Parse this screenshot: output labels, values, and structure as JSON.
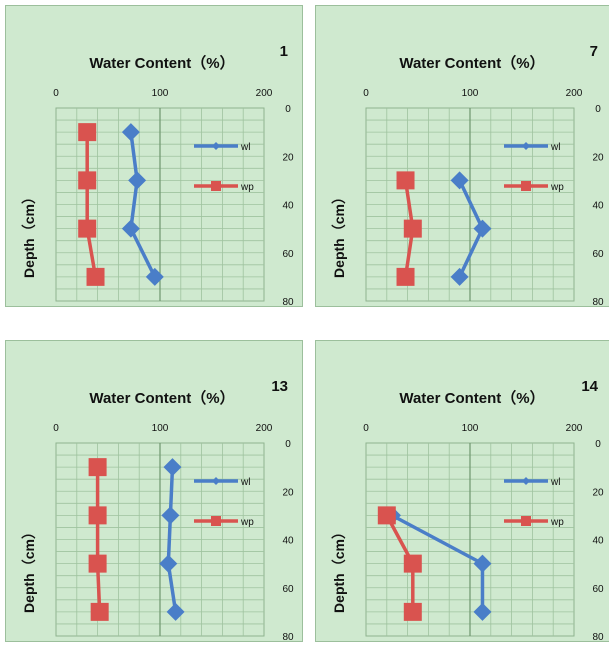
{
  "chart_data": [
    {
      "type": "line",
      "title": "Water Content（%）",
      "panel_label": "1",
      "xlabel": "Water Content（%）",
      "ylabel": "Depth（cm）",
      "xlim": [
        0,
        200
      ],
      "ylim": [
        0,
        80
      ],
      "x_ticks": [
        "0",
        "100",
        "200"
      ],
      "y_ticks": [
        "0",
        "20",
        "40",
        "60",
        "80"
      ],
      "y_inverted": true,
      "grid": true,
      "legend_position": "top-right",
      "series": [
        {
          "name": "wl",
          "color": "#4a7ec8",
          "marker": "diamond",
          "points": [
            {
              "x": 72,
              "y": 10
            },
            {
              "x": 78,
              "y": 30
            },
            {
              "x": 72,
              "y": 50
            },
            {
              "x": 95,
              "y": 70
            }
          ]
        },
        {
          "name": "wp",
          "color": "#d9534f",
          "marker": "square",
          "points": [
            {
              "x": 30,
              "y": 10
            },
            {
              "x": 30,
              "y": 30
            },
            {
              "x": 30,
              "y": 50
            },
            {
              "x": 38,
              "y": 70
            }
          ]
        }
      ]
    },
    {
      "type": "line",
      "title": "Water Content（%）",
      "panel_label": "7",
      "xlabel": "Water Content（%）",
      "ylabel": "Depth（cm）",
      "xlim": [
        0,
        200
      ],
      "ylim": [
        0,
        80
      ],
      "x_ticks": [
        "0",
        "100",
        "200"
      ],
      "y_ticks": [
        "0",
        "20",
        "40",
        "60",
        "80"
      ],
      "y_inverted": true,
      "grid": true,
      "legend_position": "top-right",
      "series": [
        {
          "name": "wl",
          "color": "#4a7ec8",
          "marker": "diamond",
          "points": [
            {
              "x": 90,
              "y": 30
            },
            {
              "x": 112,
              "y": 50
            },
            {
              "x": 90,
              "y": 70
            }
          ]
        },
        {
          "name": "wp",
          "color": "#d9534f",
          "marker": "square",
          "points": [
            {
              "x": 38,
              "y": 30
            },
            {
              "x": 45,
              "y": 50
            },
            {
              "x": 38,
              "y": 70
            }
          ]
        }
      ]
    },
    {
      "type": "line",
      "title": "Water Content（%）",
      "panel_label": "13",
      "xlabel": "Water Content（%）",
      "ylabel": "Depth（cm）",
      "xlim": [
        0,
        200
      ],
      "ylim": [
        0,
        80
      ],
      "x_ticks": [
        "0",
        "100",
        "200"
      ],
      "y_ticks": [
        "0",
        "20",
        "40",
        "60",
        "80"
      ],
      "y_inverted": true,
      "grid": true,
      "legend_position": "top-right",
      "series": [
        {
          "name": "wl",
          "color": "#4a7ec8",
          "marker": "diamond",
          "points": [
            {
              "x": 112,
              "y": 10
            },
            {
              "x": 110,
              "y": 30
            },
            {
              "x": 108,
              "y": 50
            },
            {
              "x": 115,
              "y": 70
            }
          ]
        },
        {
          "name": "wp",
          "color": "#d9534f",
          "marker": "square",
          "points": [
            {
              "x": 40,
              "y": 10
            },
            {
              "x": 40,
              "y": 30
            },
            {
              "x": 40,
              "y": 50
            },
            {
              "x": 42,
              "y": 70
            }
          ]
        }
      ]
    },
    {
      "type": "line",
      "title": "Water Content（%）",
      "panel_label": "14",
      "xlabel": "Water Content（%）",
      "ylabel": "Depth（cm）",
      "xlim": [
        0,
        200
      ],
      "ylim": [
        0,
        80
      ],
      "x_ticks": [
        "0",
        "100",
        "200"
      ],
      "y_ticks": [
        "0",
        "20",
        "40",
        "60",
        "80"
      ],
      "y_inverted": true,
      "grid": true,
      "legend_position": "top-right",
      "series": [
        {
          "name": "wl",
          "color": "#4a7ec8",
          "marker": "diamond",
          "points": [
            {
              "x": 25,
              "y": 30
            },
            {
              "x": 112,
              "y": 50
            },
            {
              "x": 112,
              "y": 70
            }
          ]
        },
        {
          "name": "wp",
          "color": "#d9534f",
          "marker": "square",
          "points": [
            {
              "x": 20,
              "y": 30
            },
            {
              "x": 45,
              "y": 50
            },
            {
              "x": 45,
              "y": 70
            }
          ]
        }
      ]
    }
  ]
}
